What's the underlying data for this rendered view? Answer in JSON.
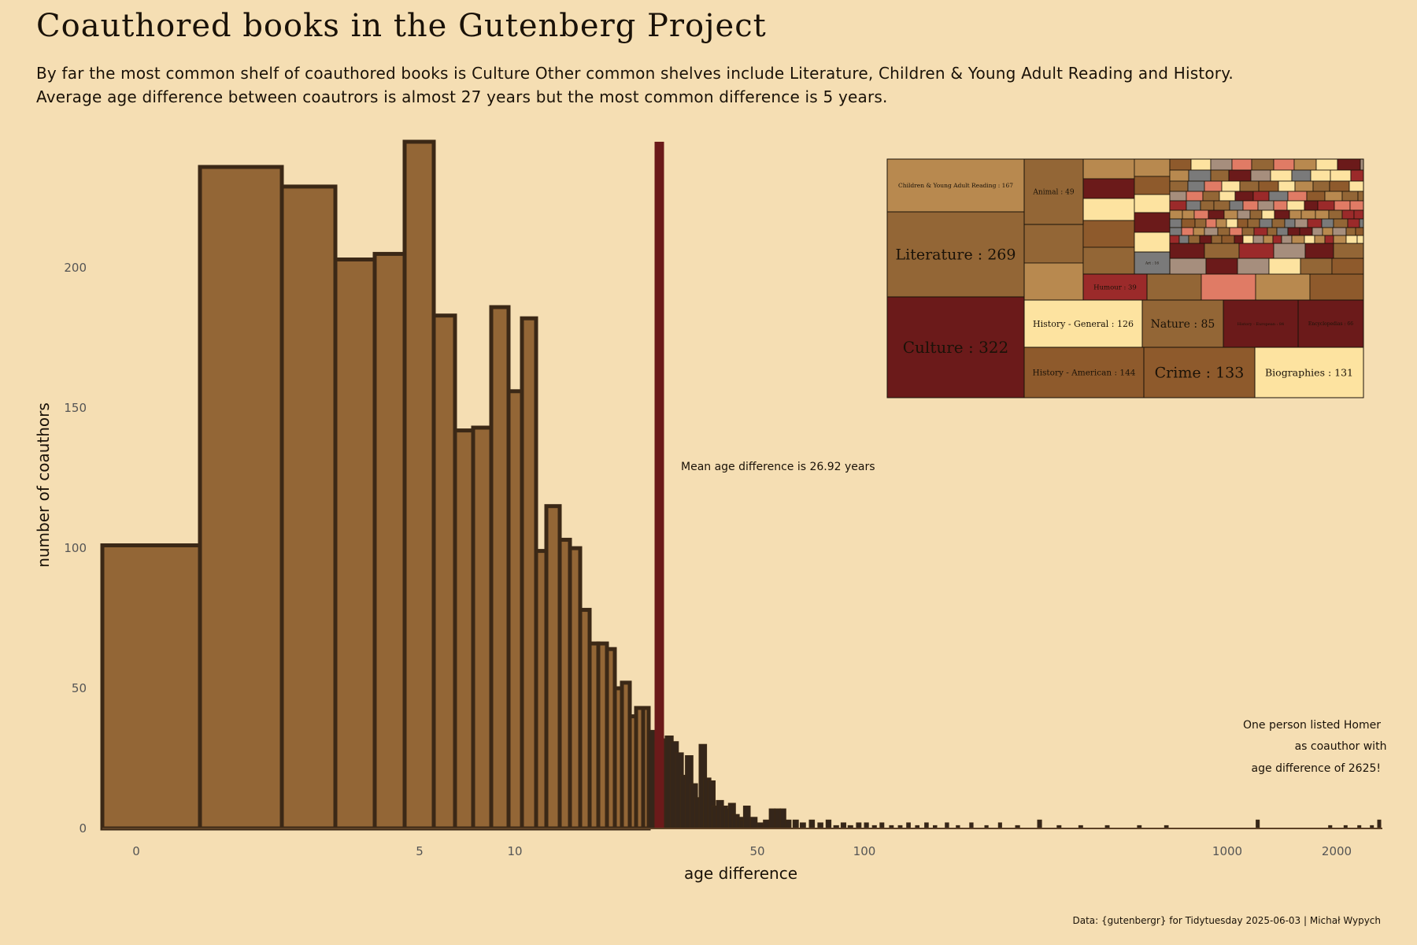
{
  "title": "Coauthored books in the Gutenberg Project",
  "subtitle_lines": [
    "By far the most common shelf of coauthored books is Culture Other common shelves include Literature, Children & Young Adult Reading and History.",
    "Average age difference between coautrors is almost 27 years but the most common difference is 5 years."
  ],
  "caption": "Data: {gutenbergr} for Tidytuesday 2025-06-03 | Michał Wypych",
  "colors": {
    "background": "#f5deb3",
    "bar_fill": "#936636",
    "bar_stroke": "#3b2816",
    "mean_line": "#6b1a1a",
    "tail_bars": "#35261a"
  },
  "chart_data": [
    {
      "type": "bar",
      "title": "",
      "xlabel": "age difference",
      "ylabel": "number of coauthors",
      "x_scale": "pseudo-log",
      "ylim": [
        0,
        245
      ],
      "y_ticks": [
        0,
        50,
        100,
        150,
        200
      ],
      "x_tick_labels": [
        {
          "value": 0,
          "label": "0"
        },
        {
          "value": 5,
          "label": "5"
        },
        {
          "value": 10,
          "label": "10"
        },
        {
          "value": 50,
          "label": "50"
        },
        {
          "value": 100,
          "label": "100"
        },
        {
          "value": 1000,
          "label": "1000"
        },
        {
          "value": 2000,
          "label": "2000"
        }
      ],
      "bars": [
        {
          "x": 0,
          "count": 101
        },
        {
          "x": 1,
          "count": 236
        },
        {
          "x": 2,
          "count": 229
        },
        {
          "x": 3,
          "count": 203
        },
        {
          "x": 4,
          "count": 205
        },
        {
          "x": 5,
          "count": 245
        },
        {
          "x": 6,
          "count": 183
        },
        {
          "x": 7,
          "count": 142
        },
        {
          "x": 8,
          "count": 143
        },
        {
          "x": 9,
          "count": 186
        },
        {
          "x": 10,
          "count": 156
        },
        {
          "x": 11,
          "count": 182
        },
        {
          "x": 12,
          "count": 99
        },
        {
          "x": 13,
          "count": 115
        },
        {
          "x": 14,
          "count": 103
        },
        {
          "x": 15,
          "count": 100
        },
        {
          "x": 16,
          "count": 78
        },
        {
          "x": 17,
          "count": 66
        },
        {
          "x": 18,
          "count": 66
        },
        {
          "x": 19,
          "count": 64
        },
        {
          "x": 20,
          "count": 50
        },
        {
          "x": 21,
          "count": 52
        },
        {
          "x": 22,
          "count": 40
        },
        {
          "x": 23,
          "count": 43
        },
        {
          "x": 24,
          "count": 43
        },
        {
          "x": 25,
          "count": 35
        },
        {
          "x": 26,
          "count": 31
        },
        {
          "x": 27,
          "count": 32
        },
        {
          "x": 28,
          "count": 33
        },
        {
          "x": 29,
          "count": 31
        },
        {
          "x": 30,
          "count": 27
        },
        {
          "x": 31,
          "count": 19
        },
        {
          "x": 32,
          "count": 26
        },
        {
          "x": 33,
          "count": 16
        },
        {
          "x": 34,
          "count": 11
        },
        {
          "x": 35,
          "count": 30
        },
        {
          "x": 36,
          "count": 18
        },
        {
          "x": 37,
          "count": 17
        },
        {
          "x": 38,
          "count": 8
        },
        {
          "x": 39,
          "count": 10
        },
        {
          "x": 40,
          "count": 8
        },
        {
          "x": 41,
          "count": 7
        },
        {
          "x": 42,
          "count": 9
        },
        {
          "x": 43,
          "count": 5
        },
        {
          "x": 44,
          "count": 4
        },
        {
          "x": 45,
          "count": 3
        },
        {
          "x": 46,
          "count": 8
        },
        {
          "x": 48,
          "count": 4
        },
        {
          "x": 50,
          "count": 2
        },
        {
          "x": 52,
          "count": 3
        },
        {
          "x": 54,
          "count": 7
        },
        {
          "x": 56,
          "count": 7
        },
        {
          "x": 58,
          "count": 7
        },
        {
          "x": 60,
          "count": 3
        },
        {
          "x": 63,
          "count": 3
        },
        {
          "x": 66,
          "count": 2
        },
        {
          "x": 70,
          "count": 3
        },
        {
          "x": 74,
          "count": 2
        },
        {
          "x": 78,
          "count": 3
        },
        {
          "x": 82,
          "count": 1
        },
        {
          "x": 86,
          "count": 2
        },
        {
          "x": 90,
          "count": 1
        },
        {
          "x": 95,
          "count": 2
        },
        {
          "x": 100,
          "count": 2
        },
        {
          "x": 106,
          "count": 1
        },
        {
          "x": 112,
          "count": 2
        },
        {
          "x": 120,
          "count": 1
        },
        {
          "x": 128,
          "count": 1
        },
        {
          "x": 136,
          "count": 2
        },
        {
          "x": 145,
          "count": 1
        },
        {
          "x": 155,
          "count": 2
        },
        {
          "x": 165,
          "count": 1
        },
        {
          "x": 180,
          "count": 2
        },
        {
          "x": 195,
          "count": 1
        },
        {
          "x": 215,
          "count": 2
        },
        {
          "x": 240,
          "count": 1
        },
        {
          "x": 265,
          "count": 2
        },
        {
          "x": 300,
          "count": 1
        },
        {
          "x": 340,
          "count": 3
        },
        {
          "x": 380,
          "count": 1
        },
        {
          "x": 430,
          "count": 1
        },
        {
          "x": 500,
          "count": 1
        },
        {
          "x": 600,
          "count": 1
        },
        {
          "x": 700,
          "count": 1
        },
        {
          "x": 1200,
          "count": 3
        },
        {
          "x": 1900,
          "count": 1
        },
        {
          "x": 2100,
          "count": 1
        },
        {
          "x": 2300,
          "count": 1
        },
        {
          "x": 2500,
          "count": 1
        },
        {
          "x": 2625,
          "count": 3
        }
      ],
      "mean_line": {
        "x": 26.92,
        "label": "Mean age difference is 26.92 years"
      },
      "annotation": {
        "lines": [
          "One person listed Homer",
          "as coauthor with",
          "age difference of 2625!"
        ]
      }
    },
    {
      "type": "treemap",
      "title": "",
      "labeled_tiles": [
        {
          "name": "Culture",
          "value": 322,
          "label": "Culture : 322",
          "color": "#6b1a1a"
        },
        {
          "name": "Literature",
          "value": 269,
          "label": "Literature : 269",
          "color": "#936636"
        },
        {
          "name": "Children & Young Adult Reading",
          "value": 167,
          "label": "Children & Young Adult Reading : 167",
          "color": "#b8894f"
        },
        {
          "name": "History - American",
          "value": 144,
          "label": "History - American : 144",
          "color": "#8e5a2c"
        },
        {
          "name": "Crime",
          "value": 133,
          "label": "Crime : 133",
          "color": "#8e5a2c"
        },
        {
          "name": "Biographies",
          "value": 131,
          "label": "Biographies : 131",
          "color": "#fde3a0"
        },
        {
          "name": "History - General",
          "value": 126,
          "label": "History - General : 126",
          "color": "#fde3a0"
        },
        {
          "name": "Nature",
          "value": 85,
          "label": "Nature : 85",
          "color": "#936636"
        },
        {
          "name": "History - European",
          "value": 84,
          "label": "History - European : 84",
          "color": "#6b1a1a"
        },
        {
          "name": "Encyclopedias",
          "value": 66,
          "label": "Encyclopedias : 66",
          "color": "#6b1a1a"
        },
        {
          "name": "Animal",
          "value": 49,
          "label": "Animal : 49",
          "color": "#936636"
        },
        {
          "name": "Humour",
          "value": 39,
          "label": "Humour : 39",
          "color": "#9b2a2a"
        },
        {
          "name": "Art",
          "value": 16,
          "label": "Art : 16",
          "color": "#7a7a7a"
        }
      ]
    }
  ]
}
